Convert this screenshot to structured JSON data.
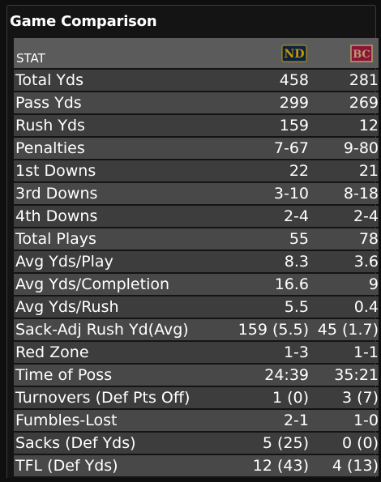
{
  "title": "Game Comparison",
  "header": {
    "stat_label": "STAT",
    "team1_logo": "notre-dame-logo",
    "team2_logo": "boston-college-logo"
  },
  "colors": {
    "header_bg": "#5b5b5b",
    "row_bg_a": "#3d3d3d",
    "row_bg_b": "#484848",
    "nd_navy": "#0c2340",
    "nd_gold": "#c99700",
    "bc_maroon": "#8a1538",
    "bc_gold": "#bc9b6a"
  },
  "rows": [
    {
      "label": "Total Yds",
      "team1": "458",
      "team2": "281"
    },
    {
      "label": "Pass Yds",
      "team1": "299",
      "team2": "269"
    },
    {
      "label": "Rush Yds",
      "team1": "159",
      "team2": "12"
    },
    {
      "label": "Penalties",
      "team1": "7-67",
      "team2": "9-80"
    },
    {
      "label": "1st Downs",
      "team1": "22",
      "team2": "21"
    },
    {
      "label": "3rd Downs",
      "team1": "3-10",
      "team2": "8-18"
    },
    {
      "label": "4th Downs",
      "team1": "2-4",
      "team2": "2-4"
    },
    {
      "label": "Total Plays",
      "team1": "55",
      "team2": "78"
    },
    {
      "label": "Avg Yds/Play",
      "team1": "8.3",
      "team2": "3.6"
    },
    {
      "label": "Avg Yds/Completion",
      "team1": "16.6",
      "team2": "9"
    },
    {
      "label": "Avg Yds/Rush",
      "team1": "5.5",
      "team2": "0.4"
    },
    {
      "label": "Sack-Adj Rush Yd(Avg)",
      "team1": "159 (5.5)",
      "team2": "45 (1.7)"
    },
    {
      "label": "Red Zone",
      "team1": "1-3",
      "team2": "1-1"
    },
    {
      "label": "Time of Poss",
      "team1": "24:39",
      "team2": "35:21"
    },
    {
      "label": "Turnovers (Def Pts Off)",
      "team1": "1 (0)",
      "team2": "3 (7)"
    },
    {
      "label": "Fumbles-Lost",
      "team1": "2-1",
      "team2": "1-0"
    },
    {
      "label": "Sacks (Def Yds)",
      "team1": "5 (25)",
      "team2": "0 (0)"
    },
    {
      "label": "TFL (Def Yds)",
      "team1": "12 (43)",
      "team2": "4 (13)"
    }
  ]
}
